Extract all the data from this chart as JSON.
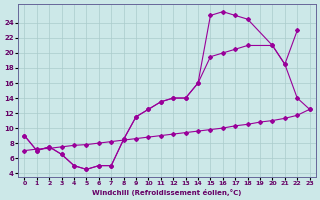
{
  "xlabel": "Windchill (Refroidissement éolien,°C)",
  "bg_color": "#cce8e8",
  "grid_color": "#aacccc",
  "line_color": "#990099",
  "xlim": [
    -0.5,
    23.5
  ],
  "ylim": [
    3.5,
    26.5
  ],
  "xticks": [
    0,
    1,
    2,
    3,
    4,
    5,
    6,
    7,
    8,
    9,
    10,
    11,
    12,
    13,
    14,
    15,
    16,
    17,
    18,
    19,
    20,
    21,
    22,
    23
  ],
  "yticks": [
    4,
    6,
    8,
    10,
    12,
    14,
    16,
    18,
    20,
    22,
    24
  ],
  "curve1_x": [
    0,
    1,
    2,
    3,
    4,
    5,
    6,
    7,
    8,
    9,
    10,
    11,
    12,
    13,
    14,
    15,
    16,
    17,
    18,
    20,
    21,
    22
  ],
  "curve1_y": [
    9,
    7,
    7.5,
    6.5,
    5,
    4.5,
    5,
    5,
    8.5,
    11.5,
    12.5,
    13.5,
    14,
    14,
    16,
    25,
    25.5,
    25,
    24.5,
    21,
    18.5,
    23
  ],
  "curve2_x": [
    0,
    1,
    2,
    3,
    4,
    5,
    6,
    7,
    8,
    9,
    10,
    11,
    12,
    13,
    14,
    15,
    16,
    17,
    18,
    20,
    21,
    22,
    23
  ],
  "curve2_y": [
    9,
    7,
    7.5,
    6.5,
    5,
    4.5,
    5,
    5,
    8.5,
    11.5,
    12.5,
    13.5,
    14,
    14,
    16,
    19.5,
    20,
    20.5,
    21,
    21,
    18.5,
    14,
    12.5
  ],
  "curve3_x": [
    0,
    1,
    2,
    3,
    4,
    5,
    6,
    7,
    8,
    9,
    10,
    11,
    12,
    13,
    14,
    15,
    16,
    17,
    18,
    19,
    20,
    21,
    22,
    23
  ],
  "curve3_y": [
    7,
    7.2,
    7.3,
    7.5,
    7.7,
    7.8,
    8.0,
    8.2,
    8.4,
    8.6,
    8.8,
    9.0,
    9.2,
    9.4,
    9.6,
    9.8,
    10.0,
    10.3,
    10.5,
    10.8,
    11.0,
    11.3,
    11.7,
    12.5
  ]
}
